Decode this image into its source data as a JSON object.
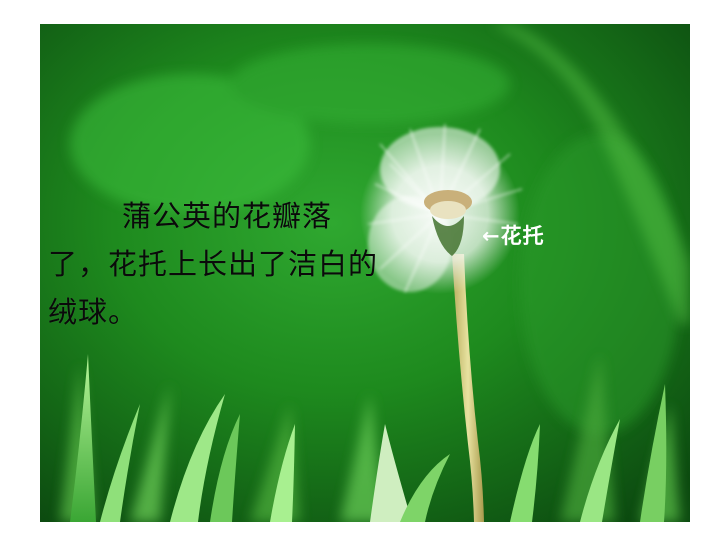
{
  "caption": {
    "text": "蒲公英的花瓣落了，花托上长出了洁白的绒球。"
  },
  "label": {
    "arrow": "←",
    "text": "花托"
  },
  "colors": {
    "background_green": "#1e8a1e",
    "dark_green": "#0c4a10",
    "grass_light": "#8fe07a",
    "stem": "#d9d48a",
    "seed_head": "#f4f8f4",
    "receptacle": "#c9b07a"
  }
}
